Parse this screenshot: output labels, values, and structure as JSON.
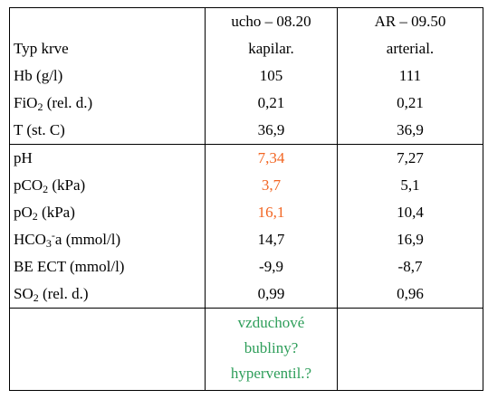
{
  "table": {
    "header": [
      {
        "lines": [
          "Typ krve"
        ]
      },
      {
        "lines": [
          "ucho – 08.20",
          "kapilar."
        ]
      },
      {
        "lines": [
          "AR – 09.50",
          "arterial."
        ]
      }
    ],
    "sections": [
      {
        "rows": [
          {
            "label": [
              {
                "text": "Hb (g/l)"
              }
            ],
            "cells": [
              "105",
              "111"
            ]
          },
          {
            "label": [
              {
                "text": "FiO"
              },
              {
                "text": "2",
                "style": "sub"
              },
              {
                "text": " (rel. d.)"
              }
            ],
            "cells": [
              "0,21",
              "0,21"
            ]
          },
          {
            "label": [
              {
                "text": "T (st. C)"
              }
            ],
            "cells": [
              "36,9",
              "36,9"
            ]
          }
        ]
      },
      {
        "rows": [
          {
            "label": [
              {
                "text": "pH"
              }
            ],
            "cells": [
              {
                "text": "7,34",
                "color": "#f26522"
              },
              "7,27"
            ]
          },
          {
            "label": [
              {
                "text": "pCO"
              },
              {
                "text": "2",
                "style": "sub"
              },
              {
                "text": " (kPa)"
              }
            ],
            "cells": [
              {
                "text": "3,7",
                "color": "#f26522"
              },
              "5,1"
            ]
          },
          {
            "label": [
              {
                "text": "pO"
              },
              {
                "text": "2",
                "style": "sub"
              },
              {
                "text": " (kPa)"
              }
            ],
            "cells": [
              {
                "text": "16,1",
                "color": "#f26522"
              },
              "10,4"
            ]
          },
          {
            "label": [
              {
                "text": "HCO"
              },
              {
                "text": "3",
                "style": "sub"
              },
              {
                "text": "-",
                "style": "sup"
              },
              {
                "text": "a (mmol/l)"
              }
            ],
            "cells": [
              "14,7",
              "16,9"
            ]
          },
          {
            "label": [
              {
                "text": "BE ECT (mmol/l)"
              }
            ],
            "cells": [
              "-9,9",
              "-8,7"
            ]
          },
          {
            "label": [
              {
                "text": "SO"
              },
              {
                "text": "2",
                "style": "sub"
              },
              {
                "text": " (rel. d.)"
              }
            ],
            "cells": [
              "0,99",
              "0,96"
            ]
          }
        ]
      },
      {
        "note": {
          "lines": [
            "vzduchové",
            "bubliny?",
            "hyperventil.?"
          ],
          "color": "#2e9e5a"
        }
      }
    ]
  }
}
